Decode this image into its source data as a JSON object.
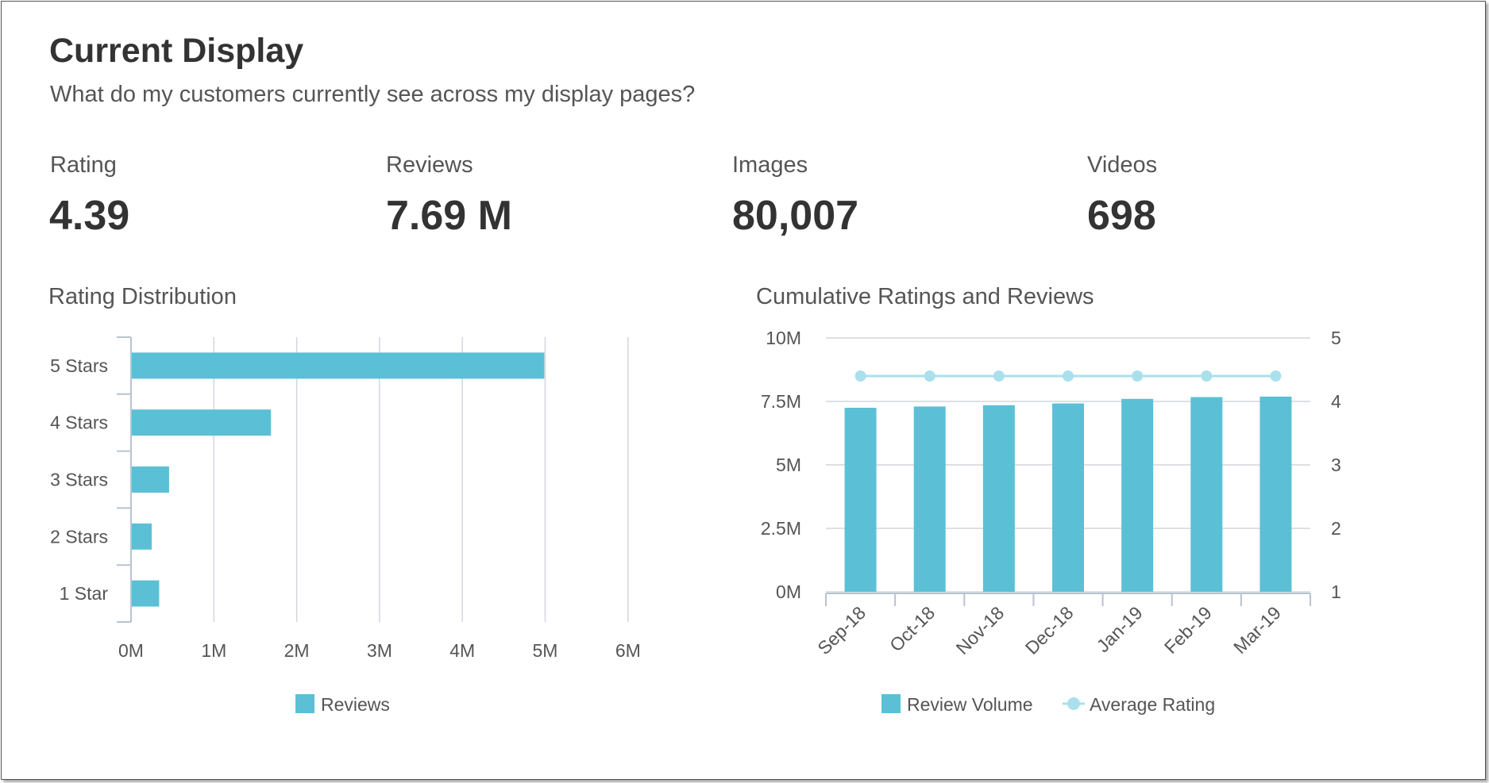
{
  "header": {
    "title": "Current Display",
    "subtitle": "What do my customers currently see across my display pages?"
  },
  "kpis": [
    {
      "label": "Rating",
      "value": "4.39"
    },
    {
      "label": "Reviews",
      "value": "7.69 M"
    },
    {
      "label": "Images",
      "value": "80,007"
    },
    {
      "label": "Videos",
      "value": "698"
    }
  ],
  "colors": {
    "bar": "#5bc0d6",
    "line": "#a9e0ec",
    "grid": "#d2d6dc",
    "axis": "#b7c3d0",
    "text": "#555555"
  },
  "chart_data": [
    {
      "type": "bar",
      "orientation": "horizontal",
      "title": "Rating Distribution",
      "categories": [
        "5 Stars",
        "4 Stars",
        "3 Stars",
        "2 Stars",
        "1 Star"
      ],
      "series": [
        {
          "name": "Reviews",
          "values": [
            4.98,
            1.68,
            0.45,
            0.24,
            0.33
          ]
        }
      ],
      "unit": "M",
      "xlim": [
        0,
        6
      ],
      "xticks": [
        "0M",
        "1M",
        "2M",
        "3M",
        "4M",
        "5M",
        "6M"
      ],
      "grid": true,
      "legend": "bottom-center"
    },
    {
      "type": "bar",
      "title": "Cumulative Ratings and Reviews",
      "categories": [
        "Sep-18",
        "Oct-18",
        "Nov-18",
        "Dec-18",
        "Jan-19",
        "Feb-19",
        "Mar-19"
      ],
      "series": [
        {
          "name": "Review Volume",
          "type": "bar",
          "axis": "left",
          "values": [
            7.25,
            7.3,
            7.35,
            7.42,
            7.6,
            7.67,
            7.69
          ]
        },
        {
          "name": "Average Rating",
          "type": "line",
          "axis": "right",
          "values": [
            4.4,
            4.4,
            4.4,
            4.4,
            4.4,
            4.4,
            4.4
          ]
        }
      ],
      "ylim_left": [
        0,
        10
      ],
      "yticks_left": [
        "0M",
        "2.5M",
        "5M",
        "7.5M",
        "10M"
      ],
      "ylim_right": [
        1,
        5
      ],
      "yticks_right": [
        "1",
        "2",
        "3",
        "4",
        "5"
      ],
      "grid": true,
      "legend": "bottom-center"
    }
  ]
}
